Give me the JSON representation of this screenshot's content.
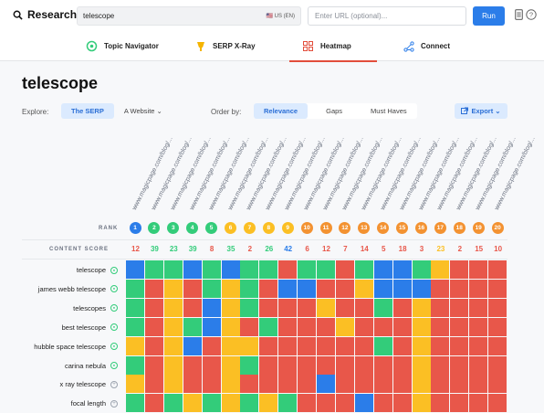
{
  "topbar": {
    "brand": "Research",
    "keyword_value": "telescope",
    "locale": "🇺🇸 US (EN)",
    "url_placeholder": "Enter URL (optional)...",
    "run_label": "Run"
  },
  "tabs": [
    {
      "label": "Topic Navigator",
      "icon": "navigator-icon"
    },
    {
      "label": "SERP X-Ray",
      "icon": "xray-icon"
    },
    {
      "label": "Heatmap",
      "icon": "heatmap-icon",
      "active": true
    },
    {
      "label": "Connect",
      "icon": "connect-icon"
    }
  ],
  "main": {
    "title": "telescope",
    "explore_label": "Explore:",
    "explore_options": [
      "The SERP",
      "A Website ⌄"
    ],
    "order_label": "Order by:",
    "order_options": [
      "Relevance",
      "Gaps",
      "Must Haves"
    ],
    "export_label": "Export ⌄"
  },
  "colors": {
    "blue": "#2b7de9",
    "green": "#33cc7a",
    "yellow": "#fbbf24",
    "orange": "#f39231",
    "red": "#e8574a"
  },
  "heatmap": {
    "url_label": "www.magicpage.com/blog/...",
    "rank_label": "RANK",
    "score_label": "CONTENT SCORE",
    "ranks": [
      "1",
      "2",
      "3",
      "4",
      "5",
      "6",
      "7",
      "8",
      "9",
      "10",
      "11",
      "12",
      "13",
      "14",
      "15",
      "16",
      "17",
      "18",
      "19",
      "20"
    ],
    "rank_colors": [
      "blue",
      "green",
      "green",
      "green",
      "green",
      "yellow",
      "yellow",
      "yellow",
      "yellow",
      "orange",
      "orange",
      "orange",
      "orange",
      "orange",
      "orange",
      "orange",
      "orange",
      "orange",
      "orange",
      "orange"
    ],
    "scores": [
      "12",
      "39",
      "23",
      "39",
      "8",
      "35",
      "2",
      "26",
      "42",
      "6",
      "12",
      "7",
      "14",
      "5",
      "18",
      "3",
      "23",
      "2",
      "15",
      "10"
    ],
    "score_colors": [
      "red",
      "green",
      "green",
      "green",
      "red",
      "green",
      "red",
      "green",
      "blue",
      "red",
      "red",
      "red",
      "red",
      "red",
      "red",
      "red",
      "yellow",
      "red",
      "red",
      "red"
    ],
    "rows": [
      {
        "label": "telescope",
        "status": "check",
        "cells": [
          "blue",
          "green",
          "green",
          "blue",
          "green",
          "blue",
          "green",
          "green",
          "red",
          "green",
          "green",
          "red",
          "green",
          "blue",
          "blue",
          "green",
          "yellow",
          "red",
          "red",
          "red"
        ]
      },
      {
        "label": "james webb telescope",
        "status": "check",
        "cells": [
          "green",
          "red",
          "yellow",
          "red",
          "green",
          "yellow",
          "green",
          "red",
          "blue",
          "blue",
          "red",
          "red",
          "yellow",
          "blue",
          "blue",
          "blue",
          "red",
          "red",
          "red",
          "red"
        ]
      },
      {
        "label": "telescopes",
        "status": "check",
        "cells": [
          "green",
          "red",
          "yellow",
          "red",
          "blue",
          "yellow",
          "green",
          "red",
          "red",
          "red",
          "yellow",
          "red",
          "red",
          "green",
          "red",
          "yellow",
          "red",
          "red",
          "red",
          "red"
        ]
      },
      {
        "label": "best telescope",
        "status": "check",
        "cells": [
          "green",
          "red",
          "yellow",
          "green",
          "blue",
          "yellow",
          "red",
          "green",
          "red",
          "red",
          "red",
          "yellow",
          "red",
          "red",
          "red",
          "yellow",
          "red",
          "red",
          "red",
          "red"
        ]
      },
      {
        "label": "hubble space telescope",
        "status": "check",
        "cells": [
          "yellow",
          "red",
          "yellow",
          "blue",
          "red",
          "yellow",
          "yellow",
          "red",
          "red",
          "red",
          "red",
          "red",
          "red",
          "green",
          "red",
          "yellow",
          "red",
          "red",
          "red",
          "red"
        ]
      },
      {
        "label": "carina nebula",
        "status": "check",
        "cells": [
          "green",
          "red",
          "yellow",
          "red",
          "red",
          "yellow",
          "green",
          "red",
          "red",
          "red",
          "red",
          "red",
          "red",
          "red",
          "red",
          "yellow",
          "red",
          "red",
          "red",
          "red"
        ]
      },
      {
        "label": "x ray telescope",
        "status": "plus",
        "cells": [
          "yellow",
          "red",
          "yellow",
          "red",
          "red",
          "yellow",
          "red",
          "red",
          "red",
          "red",
          "blue",
          "red",
          "red",
          "red",
          "red",
          "yellow",
          "red",
          "red",
          "red",
          "red"
        ]
      },
      {
        "label": "focal length",
        "status": "plus",
        "cells": [
          "green",
          "red",
          "green",
          "yellow",
          "green",
          "yellow",
          "green",
          "yellow",
          "green",
          "red",
          "red",
          "red",
          "blue",
          "red",
          "red",
          "yellow",
          "red",
          "red",
          "red",
          "red"
        ]
      }
    ]
  }
}
